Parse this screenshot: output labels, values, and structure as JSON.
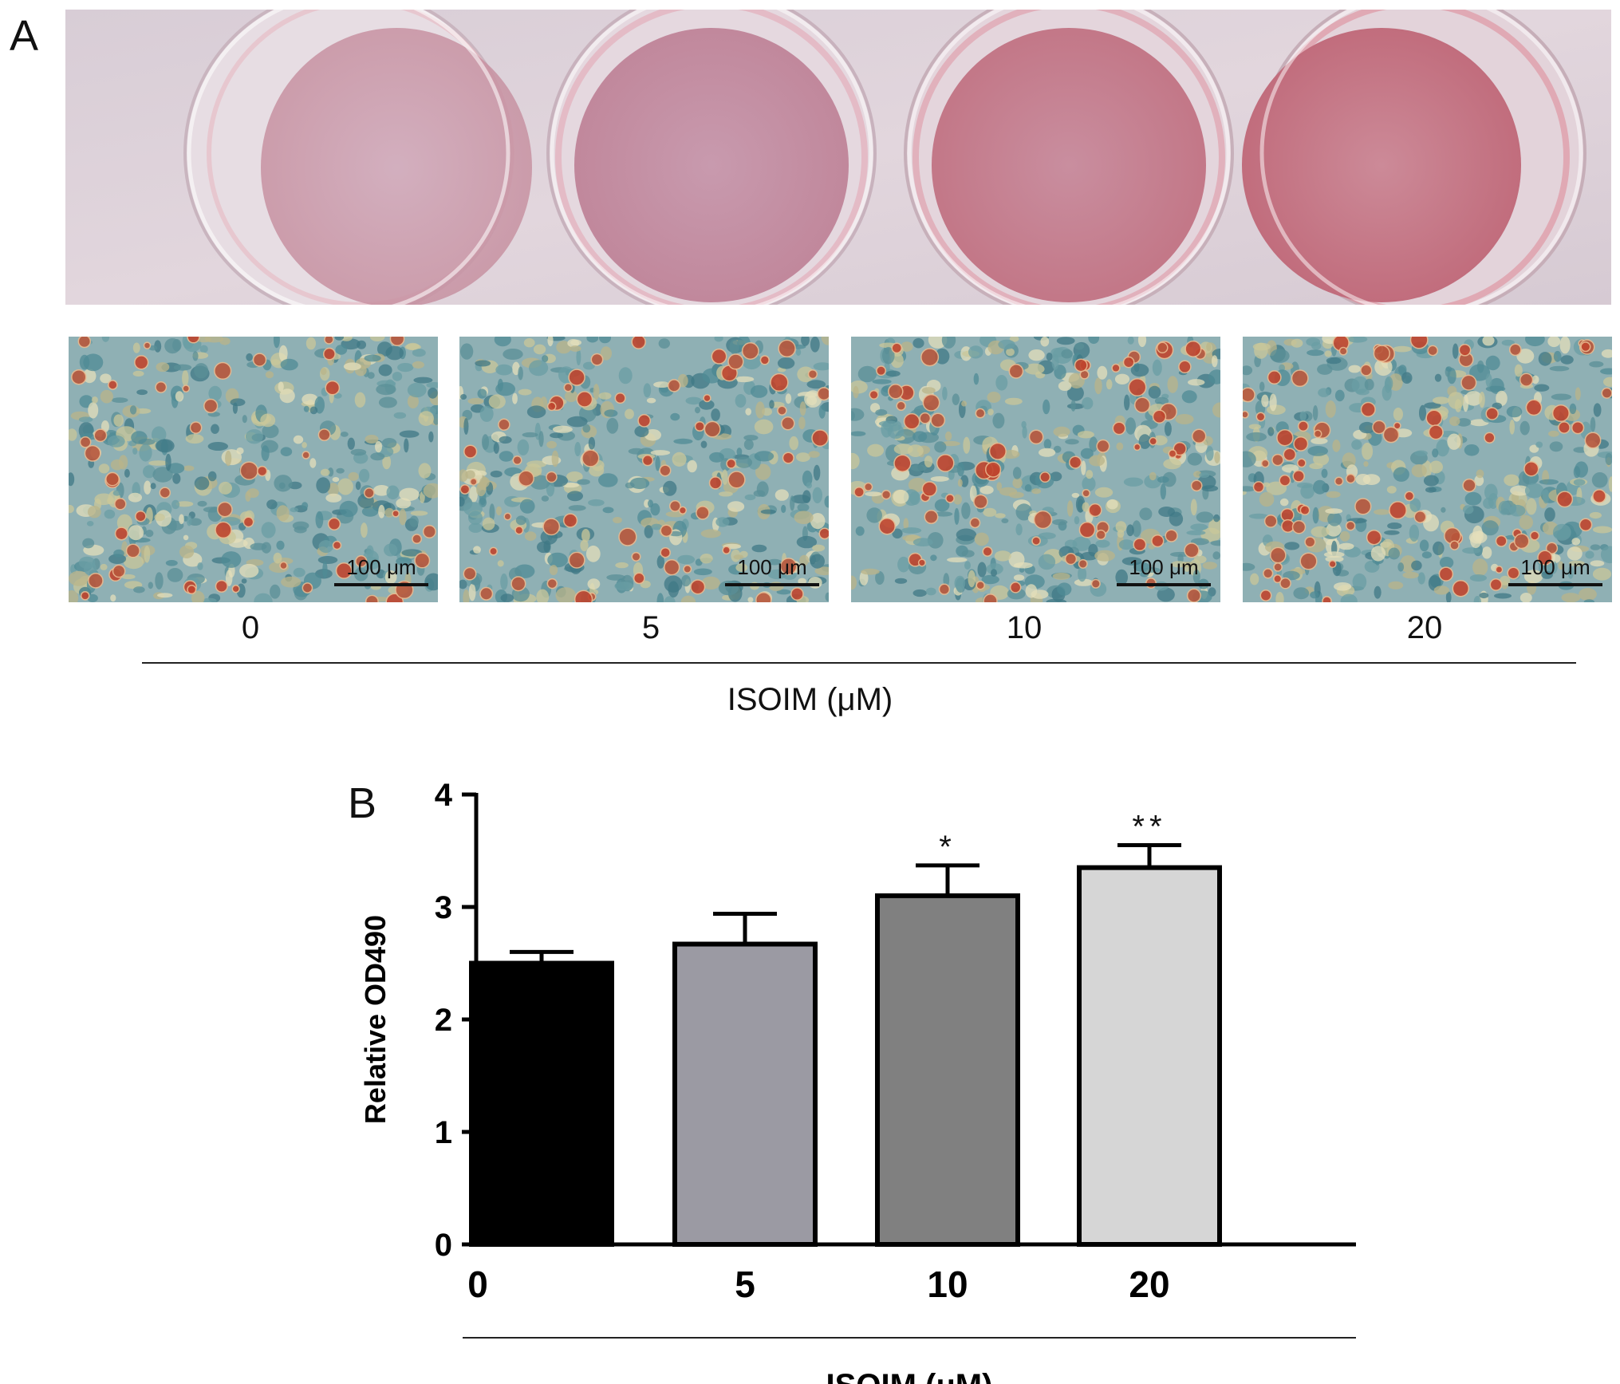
{
  "panel_a": {
    "letter": "A",
    "micrographs": [
      {
        "concentration": "0",
        "scale_bar": "100 μm"
      },
      {
        "concentration": "5",
        "scale_bar": "100 μm"
      },
      {
        "concentration": "10",
        "scale_bar": "100 μm"
      },
      {
        "concentration": "20",
        "scale_bar": "100 μm"
      }
    ],
    "axis_title": "ISOIM (μM)"
  },
  "panel_b": {
    "letter": "B"
  },
  "chart_data": {
    "type": "bar",
    "categories": [
      "0",
      "5",
      "10",
      "20"
    ],
    "values": [
      2.5,
      2.67,
      3.1,
      3.35
    ],
    "errors": [
      0.1,
      0.27,
      0.27,
      0.2
    ],
    "significance": [
      "",
      "",
      "*",
      "**"
    ],
    "colors": [
      "#000000",
      "#9b9aa3",
      "#808080",
      "#d6d6d6"
    ],
    "xlabel": "ISOIM (μM)",
    "ylabel": "Relative OD490",
    "ylim": [
      0,
      4
    ],
    "yticks": [
      "0",
      "1",
      "2",
      "3",
      "4"
    ],
    "grid": false
  }
}
